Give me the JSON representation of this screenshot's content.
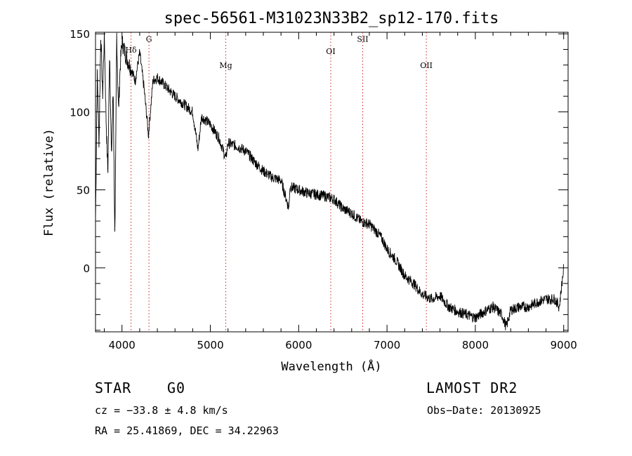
{
  "chart_data": {
    "type": "line",
    "title": "spec-56561-M31023N33B2_sp12-170.fits",
    "xlabel": "Wavelength (Å)",
    "ylabel": "Flux (relative)",
    "xlim": [
      3700,
      9050
    ],
    "ylim": [
      -41,
      151
    ],
    "x_ticks": [
      4000,
      5000,
      6000,
      7000,
      8000,
      9000
    ],
    "x_tick_labels": [
      "4000",
      "5000",
      "6000",
      "7000",
      "8000",
      "9000"
    ],
    "y_ticks": [
      0,
      50,
      100,
      150
    ],
    "y_tick_labels": [
      "0",
      "50",
      "100",
      "150"
    ],
    "grid": false,
    "line_color": "#000000",
    "marker_color": "#cc2222",
    "spectrum": {
      "x": [
        3700,
        3720,
        3740,
        3760,
        3780,
        3800,
        3820,
        3840,
        3860,
        3880,
        3900,
        3920,
        3940,
        3960,
        3980,
        4000,
        4050,
        4100,
        4150,
        4200,
        4250,
        4300,
        4350,
        4400,
        4500,
        4600,
        4700,
        4800,
        4860,
        4900,
        5000,
        5100,
        5175,
        5200,
        5300,
        5400,
        5500,
        5600,
        5700,
        5800,
        5890,
        5900,
        6000,
        6100,
        6200,
        6300,
        6400,
        6500,
        6600,
        6700,
        6800,
        6900,
        6950,
        7000,
        7100,
        7200,
        7300,
        7400,
        7500,
        7600,
        7700,
        7800,
        7900,
        8000,
        8100,
        8200,
        8300,
        8350,
        8400,
        8500,
        8600,
        8700,
        8800,
        8900,
        8950,
        9000
      ],
      "y": [
        30,
        125,
        80,
        150,
        110,
        150,
        95,
        60,
        140,
        70,
        115,
        15,
        150,
        100,
        130,
        145,
        135,
        128,
        120,
        138,
        115,
        85,
        120,
        122,
        116,
        110,
        105,
        100,
        76,
        97,
        92,
        83,
        70,
        80,
        78,
        75,
        68,
        62,
        58,
        56,
        38,
        52,
        50,
        48,
        47,
        46,
        44,
        38,
        35,
        30,
        28,
        22,
        18,
        12,
        5,
        -5,
        -10,
        -17,
        -20,
        -18,
        -25,
        -28,
        -30,
        -32,
        -28,
        -25,
        -30,
        -38,
        -27,
        -25,
        -25,
        -22,
        -20,
        -20,
        -25,
        0
      ]
    },
    "lines": [
      {
        "label": "Hδ",
        "x": 4102,
        "label_y": 138
      },
      {
        "label": "G",
        "x": 4305,
        "label_y": 145
      },
      {
        "label": "Mg",
        "x": 5175,
        "label_y": 128
      },
      {
        "label": "OI",
        "x": 6363,
        "label_y": 137
      },
      {
        "label": "SII",
        "x": 6725,
        "label_y": 145
      },
      {
        "label": "OII",
        "x": 7445,
        "label_y": 128
      }
    ]
  },
  "info": {
    "object_class": "STAR",
    "subclass": "G0",
    "survey": "LAMOST DR2",
    "cz": "cz = −33.8 ± 4.8 km/s",
    "obs_date": "Obs−Date: 20130925",
    "radec": "RA =  25.41869, DEC =  34.22963"
  }
}
